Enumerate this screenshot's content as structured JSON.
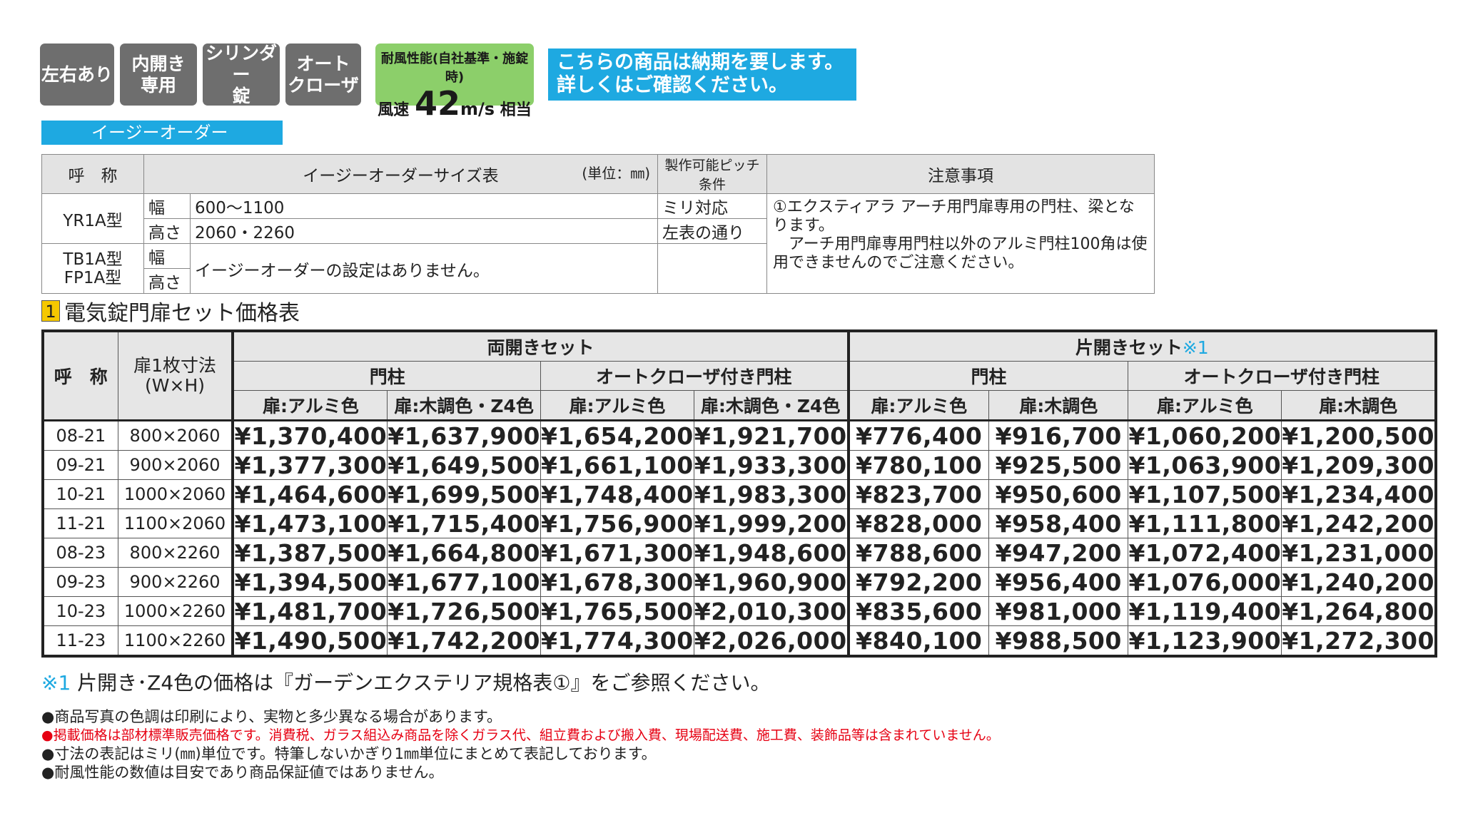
{
  "badges": [
    "左右あり",
    "内開き\n専用",
    "シリンダー\n錠",
    "オート\nクローザ"
  ],
  "wind": {
    "line1": "耐風性能(自社基準・施錠時)",
    "prefix": "風速",
    "value": "42",
    "unit": "m/s",
    "suffix": "相当"
  },
  "notice": "こちらの商品は納期を要します。\n詳しくはご確認ください。",
  "easy_order": {
    "label": "イージーオーダー",
    "headers": {
      "name": "呼　称",
      "table": "イージーオーダーサイズ表",
      "unit": "(単位：㎜)",
      "pitch": "製作可能ピッチ条件",
      "notes": "注意事項"
    },
    "yr": {
      "name": "YR1A型",
      "w_label": "幅",
      "w_value": "600～1100",
      "h_label": "高さ",
      "h_value": "2060・2260",
      "pitch_w": "ミリ対応",
      "pitch_h": "左表の通り"
    },
    "tb": {
      "name1": "TB1A型",
      "name2": "FP1A型",
      "w_label": "幅",
      "h_label": "高さ",
      "value": "イージーオーダーの設定はありません。"
    },
    "note": "①エクスティアラ アーチ用門扉専用の門柱、梁となります。\n　アーチ用門扉専用門柱以外のアルミ門柱100角は使用できませんのでご注意ください。"
  },
  "section": {
    "num": "1",
    "title": "電気錠門扉セット価格表"
  },
  "price_table": {
    "h_name": "呼　称",
    "h_size": "扉1枚寸法\n(W×H)",
    "double": "両開きセット",
    "single": "片開きセット",
    "single_mark": "※1",
    "post": "門柱",
    "auto": "オートクローザ付き門柱",
    "alumi": "扉:アルミ色",
    "wood_z4": "扉:木調色・Z4色",
    "wood": "扉:木調色",
    "rows": [
      {
        "name": "08-21",
        "size": "800×2060",
        "v": [
          "¥1,370,400",
          "¥1,637,900",
          "¥1,654,200",
          "¥1,921,700",
          "¥776,400",
          "¥916,700",
          "¥1,060,200",
          "¥1,200,500"
        ]
      },
      {
        "name": "09-21",
        "size": "900×2060",
        "v": [
          "¥1,377,300",
          "¥1,649,500",
          "¥1,661,100",
          "¥1,933,300",
          "¥780,100",
          "¥925,500",
          "¥1,063,900",
          "¥1,209,300"
        ]
      },
      {
        "name": "10-21",
        "size": "1000×2060",
        "v": [
          "¥1,464,600",
          "¥1,699,500",
          "¥1,748,400",
          "¥1,983,300",
          "¥823,700",
          "¥950,600",
          "¥1,107,500",
          "¥1,234,400"
        ]
      },
      {
        "name": "11-21",
        "size": "1100×2060",
        "v": [
          "¥1,473,100",
          "¥1,715,400",
          "¥1,756,900",
          "¥1,999,200",
          "¥828,000",
          "¥958,400",
          "¥1,111,800",
          "¥1,242,200"
        ]
      },
      {
        "name": "08-23",
        "size": "800×2260",
        "v": [
          "¥1,387,500",
          "¥1,664,800",
          "¥1,671,300",
          "¥1,948,600",
          "¥788,600",
          "¥947,200",
          "¥1,072,400",
          "¥1,231,000"
        ]
      },
      {
        "name": "09-23",
        "size": "900×2260",
        "v": [
          "¥1,394,500",
          "¥1,677,100",
          "¥1,678,300",
          "¥1,960,900",
          "¥792,200",
          "¥956,400",
          "¥1,076,000",
          "¥1,240,200"
        ]
      },
      {
        "name": "10-23",
        "size": "1000×2260",
        "v": [
          "¥1,481,700",
          "¥1,726,500",
          "¥1,765,500",
          "¥2,010,300",
          "¥835,600",
          "¥981,000",
          "¥1,119,400",
          "¥1,264,800"
        ]
      },
      {
        "name": "11-23",
        "size": "1100×2260",
        "v": [
          "¥1,490,500",
          "¥1,742,200",
          "¥1,774,300",
          "¥2,026,000",
          "¥840,100",
          "¥988,500",
          "¥1,123,900",
          "¥1,272,300"
        ]
      }
    ]
  },
  "footnote": {
    "mark": "※1",
    "text": " 片開き･Z4色の価格は『ガーデンエクステリア規格表①』をご参照ください。"
  },
  "notes": [
    "●商品写真の色調は印刷により、実物と多少異なる場合があります。",
    "●掲載価格は部材標準販売価格です。消費税、ガラス組込み商品を除くガラス代、組立費および搬入費、現場配送費、施工費、装飾品等は含まれていません。",
    "●寸法の表記はミリ(㎜)単位です。特筆しないかぎり1㎜単位にまとめて表記しております。",
    "●耐風性能の数値は目安であり商品保証値ではありません。"
  ]
}
